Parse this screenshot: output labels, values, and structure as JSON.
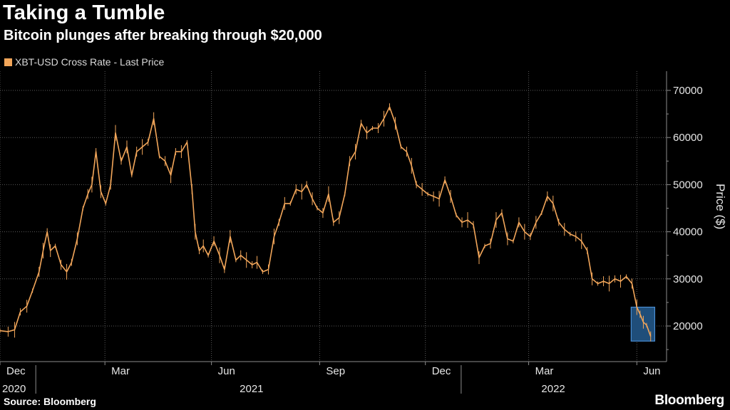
{
  "header": {
    "title": "Taking a Tumble",
    "subtitle": "Bitcoin plunges after breaking through $20,000"
  },
  "legend": {
    "label": "XBT-USD Cross Rate - Last Price",
    "color": "#f2a65a"
  },
  "footer": {
    "source": "Source: Bloomberg",
    "brand": "Bloomberg"
  },
  "colors": {
    "line": "#f2a65a",
    "grid": "#5a5a5a",
    "axis": "#8c8c8c",
    "highlight_fill": "#1f4e7a",
    "highlight_stroke": "#4a8fd6"
  },
  "chart_data": {
    "type": "line",
    "title": "Taking a Tumble",
    "subtitle": "Bitcoin plunges after breaking through $20,000",
    "series_name": "XBT-USD Cross Rate - Last Price",
    "xlabel": "",
    "ylabel": "Price ($)",
    "ylim": [
      15000,
      73000
    ],
    "yticks": [
      20000,
      30000,
      40000,
      50000,
      60000,
      70000
    ],
    "grid": true,
    "x_range": [
      0,
      80.2
    ],
    "x_unit": "weeks since 2020-12-01",
    "month_ticks": [
      {
        "label": "Dec",
        "x": 0
      },
      {
        "label": "Mar",
        "x": 12.9
      },
      {
        "label": "Jun",
        "x": 26.0
      },
      {
        "label": "Sep",
        "x": 39.3
      },
      {
        "label": "Dec",
        "x": 52.3
      },
      {
        "label": "Mar",
        "x": 65.0
      },
      {
        "label": "Jun",
        "x": 78.3
      }
    ],
    "year_labels": [
      {
        "label": "2020",
        "x": 0
      },
      {
        "label": "2021",
        "x": 29.2
      },
      {
        "label": "2022",
        "x": 66.3
      }
    ],
    "year_separators": [
      4.4,
      56.7
    ],
    "points": [
      [
        0,
        19000
      ],
      [
        1,
        18800
      ],
      [
        1.8,
        19200
      ],
      [
        2.5,
        23000
      ],
      [
        3.3,
        24200
      ],
      [
        4.0,
        27500
      ],
      [
        4.8,
        31500
      ],
      [
        5.3,
        36000
      ],
      [
        5.8,
        40000
      ],
      [
        6.2,
        36000
      ],
      [
        6.8,
        37000
      ],
      [
        7.5,
        33000
      ],
      [
        8.2,
        31500
      ],
      [
        8.8,
        33500
      ],
      [
        9.5,
        38500
      ],
      [
        10.2,
        45000
      ],
      [
        10.8,
        48000
      ],
      [
        11.3,
        50000
      ],
      [
        11.8,
        57000
      ],
      [
        12.4,
        48500
      ],
      [
        13.0,
        46000
      ],
      [
        13.6,
        50000
      ],
      [
        14.2,
        61000
      ],
      [
        14.9,
        55000
      ],
      [
        15.6,
        58000
      ],
      [
        16.2,
        52000
      ],
      [
        16.8,
        57000
      ],
      [
        17.5,
        58000
      ],
      [
        18.2,
        59000
      ],
      [
        18.9,
        64000
      ],
      [
        19.6,
        56000
      ],
      [
        20.3,
        55000
      ],
      [
        21.0,
        52000
      ],
      [
        21.6,
        57000
      ],
      [
        22.3,
        57000
      ],
      [
        23.0,
        59000
      ],
      [
        23.6,
        49000
      ],
      [
        24.0,
        40000
      ],
      [
        24.5,
        36000
      ],
      [
        25.0,
        37000
      ],
      [
        25.6,
        35000
      ],
      [
        26.3,
        38000
      ],
      [
        27.0,
        35000
      ],
      [
        27.6,
        32000
      ],
      [
        28.3,
        39000
      ],
      [
        29.0,
        34000
      ],
      [
        29.6,
        35000
      ],
      [
        30.3,
        34000
      ],
      [
        31.0,
        33000
      ],
      [
        31.6,
        33500
      ],
      [
        32.3,
        31500
      ],
      [
        33.0,
        32000
      ],
      [
        33.7,
        39000
      ],
      [
        34.3,
        42000
      ],
      [
        35.0,
        46000
      ],
      [
        35.7,
        46000
      ],
      [
        36.4,
        49000
      ],
      [
        37.1,
        48500
      ],
      [
        37.7,
        50000
      ],
      [
        38.4,
        47000
      ],
      [
        39.0,
        45000
      ],
      [
        39.7,
        44000
      ],
      [
        40.4,
        48000
      ],
      [
        41.0,
        42000
      ],
      [
        41.7,
        43000
      ],
      [
        42.4,
        48000
      ],
      [
        43.0,
        55000
      ],
      [
        43.7,
        57000
      ],
      [
        44.4,
        63000
      ],
      [
        45.1,
        61000
      ],
      [
        45.8,
        62000
      ],
      [
        46.5,
        62000
      ],
      [
        47.2,
        64000
      ],
      [
        47.9,
        66500
      ],
      [
        48.6,
        63000
      ],
      [
        49.3,
        58000
      ],
      [
        50.0,
        57000
      ],
      [
        50.6,
        54000
      ],
      [
        51.2,
        50000
      ],
      [
        51.9,
        49000
      ],
      [
        52.6,
        48000
      ],
      [
        53.3,
        47500
      ],
      [
        54.0,
        47000
      ],
      [
        54.7,
        51000
      ],
      [
        55.4,
        47500
      ],
      [
        56.1,
        43500
      ],
      [
        56.8,
        42000
      ],
      [
        57.5,
        42500
      ],
      [
        58.2,
        41500
      ],
      [
        58.9,
        34500
      ],
      [
        59.6,
        37000
      ],
      [
        60.3,
        37500
      ],
      [
        61.0,
        42500
      ],
      [
        61.7,
        44000
      ],
      [
        62.4,
        38500
      ],
      [
        63.1,
        38000
      ],
      [
        63.8,
        42000
      ],
      [
        64.5,
        40000
      ],
      [
        65.2,
        39000
      ],
      [
        65.9,
        42000
      ],
      [
        66.6,
        44000
      ],
      [
        67.3,
        47500
      ],
      [
        68.0,
        46000
      ],
      [
        68.7,
        42000
      ],
      [
        69.4,
        40500
      ],
      [
        70.1,
        39500
      ],
      [
        70.8,
        39000
      ],
      [
        71.5,
        38000
      ],
      [
        72.2,
        36000
      ],
      [
        72.8,
        30000
      ],
      [
        73.5,
        29000
      ],
      [
        74.2,
        29500
      ],
      [
        74.9,
        29000
      ],
      [
        75.6,
        30000
      ],
      [
        76.3,
        29500
      ],
      [
        77.0,
        30500
      ],
      [
        77.7,
        29000
      ],
      [
        78.3,
        24000
      ],
      [
        78.7,
        22500
      ],
      [
        79.1,
        20800
      ],
      [
        79.5,
        20200
      ],
      [
        80.0,
        17800
      ]
    ],
    "annotations": [
      {
        "type": "highlight_box",
        "x_range": [
          77.6,
          80.5
        ],
        "y_range": [
          16800,
          24000
        ]
      }
    ]
  }
}
